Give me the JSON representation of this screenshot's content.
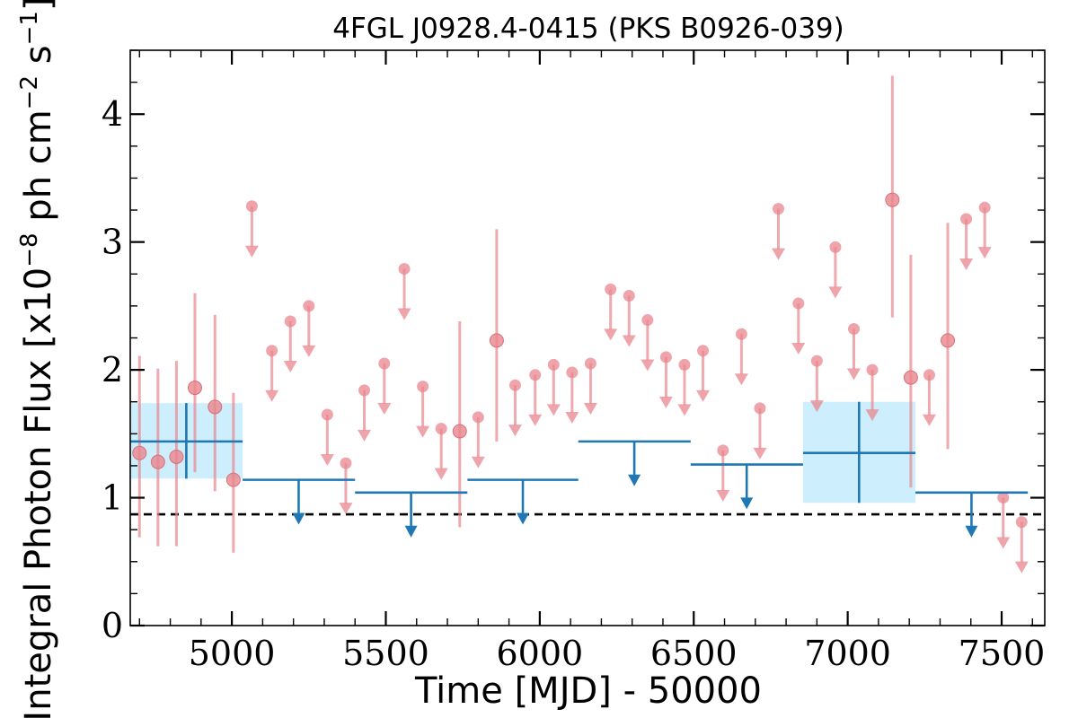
{
  "chart_data": {
    "type": "scatter",
    "title": "4FGL J0928.4-0415 (PKS B0926-039)",
    "xlabel": "Time [MJD] - 50000",
    "ylabel": {
      "pre": "Integral Photon Flux [x10",
      "exp1": "−8",
      "mid": " ph cm",
      "exp2": "−2",
      "mid2": " s",
      "exp3": "−1",
      "post": "]"
    },
    "xlim": [
      4670,
      7640
    ],
    "ylim": [
      0,
      4.5
    ],
    "xticks": [
      5000,
      5500,
      6000,
      6500,
      7000,
      7500
    ],
    "yticks": [
      0,
      1,
      2,
      3,
      4
    ],
    "reference_line": {
      "y": 0.87,
      "style": "dashed",
      "color": "#000000"
    },
    "colors": {
      "short_bins": "#e8868d",
      "long_bins": "#1f77b4",
      "long_bins_band": "#cdeefc",
      "reference": "#000000"
    },
    "short_bins": {
      "detections": [
        {
          "x": 4700,
          "y": 1.35,
          "low": 0.69,
          "high": 2.11
        },
        {
          "x": 4760,
          "y": 1.28,
          "low": 0.62,
          "high": 2.01
        },
        {
          "x": 4820,
          "y": 1.32,
          "low": 0.62,
          "high": 2.07
        },
        {
          "x": 4880,
          "y": 1.86,
          "low": 1.2,
          "high": 2.6
        },
        {
          "x": 4945,
          "y": 1.71,
          "low": 1.05,
          "high": 2.43
        },
        {
          "x": 5005,
          "y": 1.14,
          "low": 0.57,
          "high": 1.82
        },
        {
          "x": 5740,
          "y": 1.52,
          "low": 0.77,
          "high": 2.38
        },
        {
          "x": 5860,
          "y": 2.23,
          "low": 1.44,
          "high": 3.1
        },
        {
          "x": 7145,
          "y": 3.33,
          "low": 2.41,
          "high": 4.3
        },
        {
          "x": 7205,
          "y": 1.94,
          "low": 1.08,
          "high": 2.9
        },
        {
          "x": 7325,
          "y": 2.23,
          "low": 1.38,
          "high": 3.15
        }
      ],
      "upper_limits": [
        {
          "x": 5065,
          "y": 3.28,
          "arrow": 2.88
        },
        {
          "x": 5130,
          "y": 2.15,
          "arrow": 1.75
        },
        {
          "x": 5190,
          "y": 2.38,
          "arrow": 1.98
        },
        {
          "x": 5250,
          "y": 2.5,
          "arrow": 2.1
        },
        {
          "x": 5310,
          "y": 1.65,
          "arrow": 1.25
        },
        {
          "x": 5370,
          "y": 1.27,
          "arrow": 0.87
        },
        {
          "x": 5430,
          "y": 1.84,
          "arrow": 1.44
        },
        {
          "x": 5495,
          "y": 2.05,
          "arrow": 1.65
        },
        {
          "x": 5560,
          "y": 2.79,
          "arrow": 2.39
        },
        {
          "x": 5620,
          "y": 1.87,
          "arrow": 1.47
        },
        {
          "x": 5680,
          "y": 1.54,
          "arrow": 1.14
        },
        {
          "x": 5800,
          "y": 1.63,
          "arrow": 1.23
        },
        {
          "x": 5920,
          "y": 1.88,
          "arrow": 1.48
        },
        {
          "x": 5985,
          "y": 1.96,
          "arrow": 1.56
        },
        {
          "x": 6045,
          "y": 2.04,
          "arrow": 1.64
        },
        {
          "x": 6105,
          "y": 1.98,
          "arrow": 1.58
        },
        {
          "x": 6165,
          "y": 2.05,
          "arrow": 1.65
        },
        {
          "x": 6230,
          "y": 2.63,
          "arrow": 2.23
        },
        {
          "x": 6290,
          "y": 2.58,
          "arrow": 2.18
        },
        {
          "x": 6350,
          "y": 2.39,
          "arrow": 1.99
        },
        {
          "x": 6410,
          "y": 2.1,
          "arrow": 1.7
        },
        {
          "x": 6470,
          "y": 2.04,
          "arrow": 1.64
        },
        {
          "x": 6530,
          "y": 2.15,
          "arrow": 1.75
        },
        {
          "x": 6595,
          "y": 1.37,
          "arrow": 0.97
        },
        {
          "x": 6655,
          "y": 2.28,
          "arrow": 1.88
        },
        {
          "x": 6715,
          "y": 1.7,
          "arrow": 1.3
        },
        {
          "x": 6775,
          "y": 3.26,
          "arrow": 2.86
        },
        {
          "x": 6840,
          "y": 2.52,
          "arrow": 2.12
        },
        {
          "x": 6900,
          "y": 2.07,
          "arrow": 1.67
        },
        {
          "x": 6960,
          "y": 2.96,
          "arrow": 2.56
        },
        {
          "x": 7020,
          "y": 2.32,
          "arrow": 1.92
        },
        {
          "x": 7080,
          "y": 2.0,
          "arrow": 1.6
        },
        {
          "x": 7265,
          "y": 1.96,
          "arrow": 1.56
        },
        {
          "x": 7385,
          "y": 3.18,
          "arrow": 2.78
        },
        {
          "x": 7445,
          "y": 3.27,
          "arrow": 2.87
        },
        {
          "x": 7505,
          "y": 1.0,
          "arrow": 0.6
        },
        {
          "x": 7565,
          "y": 0.81,
          "arrow": 0.41
        }
      ]
    },
    "long_bins": {
      "detections": [
        {
          "x_start": 4670,
          "x_end": 5035,
          "x": 4852,
          "y": 1.44,
          "low": 1.15,
          "high": 1.74
        },
        {
          "x_start": 6855,
          "x_end": 7220,
          "x": 7037,
          "y": 1.35,
          "low": 0.96,
          "high": 1.75
        }
      ],
      "upper_limits": [
        {
          "x_start": 5035,
          "x_end": 5400,
          "x": 5217,
          "y": 1.14,
          "arrow": 0.79
        },
        {
          "x_start": 5400,
          "x_end": 5765,
          "x": 5582,
          "y": 1.04,
          "arrow": 0.69
        },
        {
          "x_start": 5765,
          "x_end": 6125,
          "x": 5945,
          "y": 1.14,
          "arrow": 0.79
        },
        {
          "x_start": 6125,
          "x_end": 6490,
          "x": 6307,
          "y": 1.44,
          "arrow": 1.09
        },
        {
          "x_start": 6490,
          "x_end": 6855,
          "x": 6672,
          "y": 1.26,
          "arrow": 0.91
        },
        {
          "x_start": 7220,
          "x_end": 7585,
          "x": 7402,
          "y": 1.04,
          "arrow": 0.69
        }
      ]
    }
  }
}
